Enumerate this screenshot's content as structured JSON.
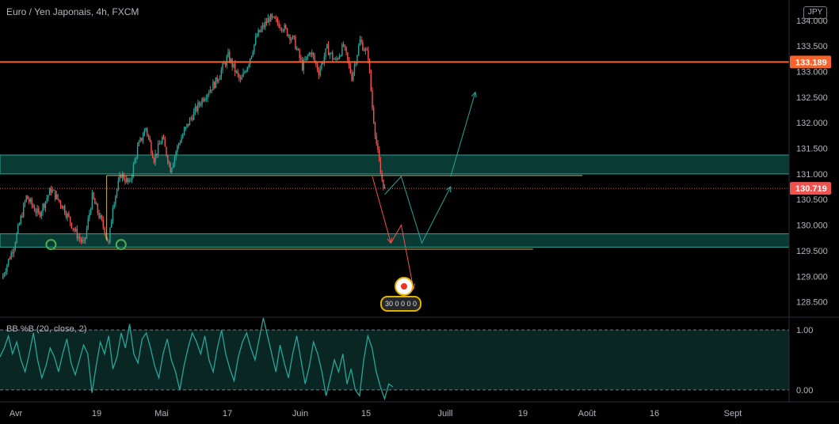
{
  "header": {
    "title": "Euro / Yen Japonais, 4h, FXCM",
    "currency_badge": "JPY"
  },
  "indicator": {
    "title": "BB %B (20, close, 2)",
    "ticks": [
      "1.00",
      "0.00"
    ]
  },
  "reaction": {
    "count_text": "30 0 0 0 0"
  },
  "colors": {
    "up": "#26a69a",
    "down": "#ef5350",
    "resistance": "#f7632a",
    "zone": "#0d4d46",
    "zone_border": "#26a69a",
    "support_line": "#c9b458",
    "bb_line": "#26a69a"
  },
  "chart_data": {
    "type": "candlestick",
    "title": "Euro / Yen Japonais, 4h, FXCM",
    "y_ticks": [
      "134.000",
      "133.500",
      "133.000",
      "132.500",
      "132.000",
      "131.500",
      "131.000",
      "130.500",
      "130.000",
      "129.500",
      "129.000",
      "128.500"
    ],
    "x_ticks": [
      "Avr",
      "19",
      "Mai",
      "17",
      "Juin",
      "15",
      "Juill",
      "19",
      "Août",
      "16",
      "Sept"
    ],
    "ylim": [
      128.2,
      134.4
    ],
    "price_tags": [
      {
        "label": "133.189",
        "value": 133.189,
        "color": "#f7632a"
      },
      {
        "label": "130.719",
        "value": 130.719,
        "color": "#ef5350"
      }
    ],
    "resistance_level": 133.189,
    "last_price": 130.719,
    "zones": [
      {
        "low": 131.0,
        "high": 131.37
      },
      {
        "low": 129.57,
        "high": 129.83
      }
    ],
    "horizontal_lines": [
      {
        "value": 130.97,
        "color": "#c9b458"
      },
      {
        "value": 129.53,
        "color": "#c9b458"
      }
    ],
    "trend_path": [
      [
        0,
        128.95
      ],
      [
        3,
        129.6
      ],
      [
        6,
        130.55
      ],
      [
        9,
        130.2
      ],
      [
        12,
        130.7
      ],
      [
        15,
        130.35
      ],
      [
        18,
        129.85
      ],
      [
        20,
        129.62
      ],
      [
        22,
        130.55
      ],
      [
        25,
        129.9
      ],
      [
        26,
        129.62
      ],
      [
        27,
        130.4
      ],
      [
        29,
        131.0
      ],
      [
        31,
        130.8
      ],
      [
        33,
        131.5
      ],
      [
        35,
        131.9
      ],
      [
        37,
        131.3
      ],
      [
        39,
        131.7
      ],
      [
        41,
        131.1
      ],
      [
        43,
        131.6
      ],
      [
        46,
        132.1
      ],
      [
        49,
        132.5
      ],
      [
        52,
        132.8
      ],
      [
        55,
        133.3
      ],
      [
        58,
        132.8
      ],
      [
        60,
        133.2
      ],
      [
        62,
        133.7
      ],
      [
        65,
        134.05
      ],
      [
        68,
        133.9
      ],
      [
        71,
        133.6
      ],
      [
        73,
        133.1
      ],
      [
        75,
        133.4
      ],
      [
        77,
        133.0
      ],
      [
        79,
        133.45
      ],
      [
        81,
        133.2
      ],
      [
        83,
        133.5
      ],
      [
        85,
        132.9
      ],
      [
        87,
        133.6
      ],
      [
        89,
        133.3
      ],
      [
        90,
        132.3
      ],
      [
        91,
        131.6
      ],
      [
        92,
        131.0
      ],
      [
        93,
        130.7
      ]
    ],
    "projections": [
      {
        "color": "#ef5350",
        "points": [
          [
            90,
            130.95
          ],
          [
            94.5,
            129.65
          ]
        ]
      },
      {
        "color": "#ef5350",
        "points": [
          [
            94.5,
            129.65
          ],
          [
            97,
            130.0
          ],
          [
            100,
            128.75
          ]
        ]
      },
      {
        "color": "#26a69a",
        "points": [
          [
            93,
            130.6
          ],
          [
            97,
            130.95
          ],
          [
            102,
            129.65
          ],
          [
            109,
            130.75
          ]
        ]
      },
      {
        "color": "#26a69a",
        "points": [
          [
            109,
            130.95
          ],
          [
            115,
            132.6
          ]
        ]
      }
    ],
    "circles": [
      {
        "x": 12,
        "y": 129.62
      },
      {
        "x": 29,
        "y": 129.62
      }
    ],
    "indicator": {
      "name": "BB %B (20, close, 2)",
      "ylim": [
        -0.2,
        1.2
      ],
      "levels": [
        1.0,
        0.0
      ],
      "values": [
        0.55,
        0.7,
        0.9,
        0.6,
        0.8,
        0.5,
        0.3,
        0.6,
        0.95,
        0.5,
        0.2,
        0.4,
        0.7,
        0.55,
        0.3,
        0.6,
        0.85,
        0.45,
        0.25,
        0.5,
        0.75,
        0.6,
        -0.05,
        0.4,
        0.8,
        0.6,
        0.9,
        0.35,
        0.55,
        0.95,
        0.7,
        1.1,
        0.6,
        0.45,
        0.85,
        0.95,
        0.7,
        0.4,
        0.2,
        0.6,
        0.85,
        0.5,
        0.3,
        0.0,
        0.4,
        0.7,
        0.95,
        0.8,
        0.6,
        0.9,
        0.5,
        0.3,
        0.7,
        1.0,
        0.6,
        0.35,
        0.15,
        0.55,
        0.8,
        0.95,
        0.7,
        0.5,
        0.85,
        1.2,
        0.9,
        0.6,
        0.3,
        0.75,
        0.45,
        0.2,
        0.6,
        0.9,
        0.5,
        0.1,
        0.4,
        0.8,
        0.6,
        0.3,
        -0.1,
        0.2,
        0.5,
        0.3,
        0.6,
        0.1,
        0.35,
        0.0,
        -0.1,
        0.5,
        0.9,
        0.7,
        0.3,
        0.05,
        -0.15,
        0.1,
        0.05
      ]
    }
  }
}
